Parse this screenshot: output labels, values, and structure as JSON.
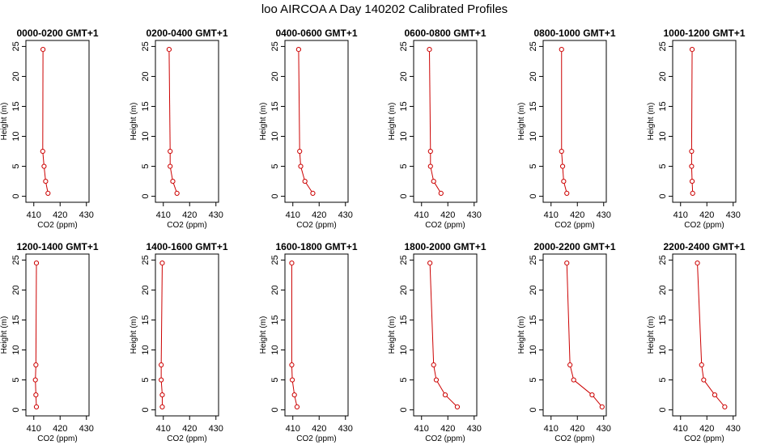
{
  "title": "loo AIRCOA A  Day 140202  Calibrated Profiles",
  "chart_data": [
    {
      "type": "line",
      "title": "0000-0200 GMT+1",
      "xlabel": "CO2 (ppm)",
      "ylabel": "Height (m)",
      "xlim": [
        407,
        431
      ],
      "ylim": [
        -1,
        26
      ],
      "xticks": [
        410,
        420,
        430
      ],
      "yticks": [
        0,
        5,
        10,
        15,
        20,
        25
      ],
      "series": [
        {
          "x": [
            413.5,
            413.4,
            413.9,
            414.5,
            415.4
          ],
          "y": [
            24.5,
            7.5,
            5,
            2.5,
            0.5
          ],
          "color": "#cc0000"
        }
      ]
    },
    {
      "type": "line",
      "title": "0200-0400 GMT+1",
      "xlabel": "CO2 (ppm)",
      "ylabel": "Height (m)",
      "xlim": [
        407,
        431
      ],
      "ylim": [
        -1,
        26
      ],
      "xticks": [
        410,
        420,
        430
      ],
      "yticks": [
        0,
        5,
        10,
        15,
        20,
        25
      ],
      "series": [
        {
          "x": [
            412.2,
            412.6,
            412.6,
            413.6,
            415.2
          ],
          "y": [
            24.5,
            7.5,
            5,
            2.5,
            0.5
          ],
          "color": "#cc0000"
        }
      ]
    },
    {
      "type": "line",
      "title": "0400-0600 GMT+1",
      "xlabel": "CO2 (ppm)",
      "ylabel": "Height (m)",
      "xlim": [
        407,
        431
      ],
      "ylim": [
        -1,
        26
      ],
      "xticks": [
        410,
        420,
        430
      ],
      "yticks": [
        0,
        5,
        10,
        15,
        20,
        25
      ],
      "series": [
        {
          "x": [
            412.2,
            412.6,
            413.0,
            414.6,
            417.6
          ],
          "y": [
            24.5,
            7.5,
            5,
            2.5,
            0.5
          ],
          "color": "#cc0000"
        }
      ]
    },
    {
      "type": "line",
      "title": "0600-0800 GMT+1",
      "xlabel": "CO2 (ppm)",
      "ylabel": "Height (m)",
      "xlim": [
        407,
        431
      ],
      "ylim": [
        -1,
        26
      ],
      "xticks": [
        410,
        420,
        430
      ],
      "yticks": [
        0,
        5,
        10,
        15,
        20,
        25
      ],
      "series": [
        {
          "x": [
            413.0,
            413.4,
            413.4,
            414.6,
            417.4
          ],
          "y": [
            24.5,
            7.5,
            5,
            2.5,
            0.5
          ],
          "color": "#cc0000"
        }
      ]
    },
    {
      "type": "line",
      "title": "0800-1000 GMT+1",
      "xlabel": "CO2 (ppm)",
      "ylabel": "Height (m)",
      "xlim": [
        407,
        431
      ],
      "ylim": [
        -1,
        26
      ],
      "xticks": [
        410,
        420,
        430
      ],
      "yticks": [
        0,
        5,
        10,
        15,
        20,
        25
      ],
      "series": [
        {
          "x": [
            414.0,
            414.0,
            414.4,
            414.8,
            416.0
          ],
          "y": [
            24.5,
            7.5,
            5,
            2.5,
            0.5
          ],
          "color": "#cc0000"
        }
      ]
    },
    {
      "type": "line",
      "title": "1000-1200 GMT+1",
      "xlabel": "CO2 (ppm)",
      "ylabel": "Height (m)",
      "xlim": [
        407,
        431
      ],
      "ylim": [
        -1,
        26
      ],
      "xticks": [
        410,
        420,
        430
      ],
      "yticks": [
        0,
        5,
        10,
        15,
        20,
        25
      ],
      "series": [
        {
          "x": [
            414.4,
            414.2,
            414.2,
            414.4,
            414.6
          ],
          "y": [
            24.5,
            7.5,
            5,
            2.5,
            0.5
          ],
          "color": "#cc0000"
        }
      ]
    },
    {
      "type": "line",
      "title": "1200-1400 GMT+1",
      "xlabel": "CO2 (ppm)",
      "ylabel": "Height (m)",
      "xlim": [
        407,
        431
      ],
      "ylim": [
        -1,
        26
      ],
      "xticks": [
        410,
        420,
        430
      ],
      "yticks": [
        0,
        5,
        10,
        15,
        20,
        25
      ],
      "series": [
        {
          "x": [
            411.0,
            410.8,
            410.6,
            410.8,
            411.0
          ],
          "y": [
            24.5,
            7.5,
            5,
            2.5,
            0.5
          ],
          "color": "#cc0000"
        }
      ]
    },
    {
      "type": "line",
      "title": "1400-1600 GMT+1",
      "xlabel": "CO2 (ppm)",
      "ylabel": "Height (m)",
      "xlim": [
        407,
        431
      ],
      "ylim": [
        -1,
        26
      ],
      "xticks": [
        410,
        420,
        430
      ],
      "yticks": [
        0,
        5,
        10,
        15,
        20,
        25
      ],
      "series": [
        {
          "x": [
            409.6,
            409.2,
            409.2,
            409.6,
            409.6
          ],
          "y": [
            24.5,
            7.5,
            5,
            2.5,
            0.5
          ],
          "color": "#cc0000"
        }
      ]
    },
    {
      "type": "line",
      "title": "1600-1800 GMT+1",
      "xlabel": "CO2 (ppm)",
      "ylabel": "Height (m)",
      "xlim": [
        407,
        431
      ],
      "ylim": [
        -1,
        26
      ],
      "xticks": [
        410,
        420,
        430
      ],
      "yticks": [
        0,
        5,
        10,
        15,
        20,
        25
      ],
      "series": [
        {
          "x": [
            409.6,
            409.6,
            409.8,
            410.6,
            411.6
          ],
          "y": [
            24.5,
            7.5,
            5,
            2.5,
            0.5
          ],
          "color": "#cc0000"
        }
      ]
    },
    {
      "type": "line",
      "title": "1800-2000 GMT+1",
      "xlabel": "CO2 (ppm)",
      "ylabel": "Height (m)",
      "xlim": [
        407,
        431
      ],
      "ylim": [
        -1,
        26
      ],
      "xticks": [
        410,
        420,
        430
      ],
      "yticks": [
        0,
        5,
        10,
        15,
        20,
        25
      ],
      "series": [
        {
          "x": [
            413.2,
            414.6,
            415.6,
            419.0,
            423.6
          ],
          "y": [
            24.5,
            7.5,
            5,
            2.5,
            0.5
          ],
          "color": "#cc0000"
        }
      ]
    },
    {
      "type": "line",
      "title": "2000-2200 GMT+1",
      "xlabel": "CO2 (ppm)",
      "ylabel": "Height (m)",
      "xlim": [
        407,
        431
      ],
      "ylim": [
        -1,
        26
      ],
      "xticks": [
        410,
        420,
        430
      ],
      "yticks": [
        0,
        5,
        10,
        15,
        20,
        25
      ],
      "series": [
        {
          "x": [
            416.0,
            417.2,
            418.6,
            425.6,
            429.4
          ],
          "y": [
            24.5,
            7.5,
            5,
            2.5,
            0.5
          ],
          "color": "#cc0000"
        }
      ]
    },
    {
      "type": "line",
      "title": "2200-2400 GMT+1",
      "xlabel": "CO2 (ppm)",
      "ylabel": "Height (m)",
      "xlim": [
        407,
        431
      ],
      "ylim": [
        -1,
        26
      ],
      "xticks": [
        410,
        420,
        430
      ],
      "yticks": [
        0,
        5,
        10,
        15,
        20,
        25
      ],
      "series": [
        {
          "x": [
            416.4,
            418.0,
            418.8,
            423.0,
            426.8
          ],
          "y": [
            24.5,
            7.5,
            5,
            2.5,
            0.5
          ],
          "color": "#cc0000"
        }
      ]
    }
  ]
}
